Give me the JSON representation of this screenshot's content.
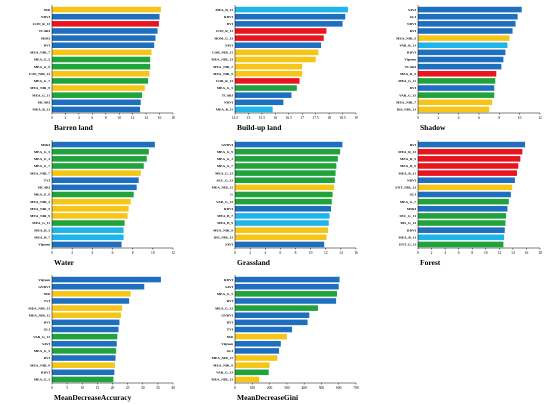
{
  "figure": {
    "colors": {
      "blue": "#1f6fbf",
      "red": "#e8141e",
      "green": "#1fa33a",
      "yellow": "#f5c518",
      "lightblue": "#1fb4ea"
    }
  },
  "chart_data": [
    {
      "type": "bar",
      "orientation": "horizontal",
      "title": "Barren land",
      "categories": [
        "NIR",
        "NDVI",
        "CON_R_13",
        "TCARI",
        "MSRI",
        "DVI",
        "MEA_NIR_7",
        "MEA_G_5",
        "MEA_G_9",
        "CON_NIR_13",
        "MEA_G_7",
        "MEA_NIR_9",
        "MEA_G_11",
        "MCARI",
        "MEA_B_13"
      ],
      "values": [
        16.2,
        16.0,
        15.9,
        15.7,
        15.4,
        15.2,
        14.8,
        14.6,
        14.6,
        14.5,
        14.3,
        13.8,
        13.4,
        13.2,
        13.1
      ],
      "bar_colors": [
        "yellow",
        "blue",
        "red",
        "blue",
        "blue",
        "blue",
        "yellow",
        "green",
        "green",
        "yellow",
        "green",
        "yellow",
        "green",
        "blue",
        "blue"
      ],
      "xlim": [
        0,
        18
      ],
      "xticks": [
        "0",
        "2",
        "4",
        "6",
        "8",
        "10",
        "12",
        "14",
        "16",
        "18"
      ]
    },
    {
      "type": "bar",
      "orientation": "horizontal",
      "title": "Build-up land",
      "categories": [
        "MEA_B_13",
        "RDVI",
        "DVI",
        "CON_R_13",
        "HOM_G_13",
        "SAVI",
        "COR_NIR_11",
        "MEA_NIR_13",
        "MEA_NIR_7",
        "MEA_NIR_9",
        "COR_R_13",
        "MEA_G_5",
        "TCARI",
        "NDVI",
        "MEA_B_11"
      ],
      "values": [
        18.7,
        18.6,
        18.5,
        17.9,
        17.8,
        17.7,
        17.6,
        17.5,
        17.0,
        17.0,
        16.9,
        16.8,
        16.6,
        16.3,
        15.9
      ],
      "bar_colors": [
        "lightblue",
        "blue",
        "blue",
        "red",
        "red",
        "blue",
        "yellow",
        "yellow",
        "yellow",
        "yellow",
        "red",
        "green",
        "blue",
        "blue",
        "lightblue"
      ],
      "xlim": [
        14.5,
        19
      ],
      "xticks": [
        "14.5",
        "15",
        "15.5",
        "16",
        "16.5",
        "17",
        "17.5",
        "18",
        "18.5",
        "19"
      ]
    },
    {
      "type": "bar",
      "orientation": "horizontal",
      "title": "Shadow",
      "categories": [
        "SAVI",
        "GLI",
        "NDVI",
        "RVI",
        "MEA_NIR_5",
        "VAR_R_13",
        "RDVI",
        "Vlgreen",
        "TCARI",
        "MEA_R_5",
        "MEA_G_11",
        "DVI",
        "VAR_G_13",
        "MEA_NIR_7",
        "DIS_NIR_13"
      ],
      "values": [
        10.2,
        9.8,
        9.6,
        9.3,
        9.0,
        8.8,
        8.6,
        8.4,
        8.2,
        7.7,
        7.6,
        7.5,
        7.5,
        7.3,
        7.0
      ],
      "bar_colors": [
        "blue",
        "blue",
        "blue",
        "blue",
        "yellow",
        "lightblue",
        "blue",
        "blue",
        "blue",
        "red",
        "green",
        "blue",
        "green",
        "yellow",
        "yellow"
      ],
      "xlim": [
        0,
        12
      ],
      "xticks": [
        "0",
        "2",
        "4",
        "6",
        "8",
        "10",
        "12"
      ]
    },
    {
      "type": "bar",
      "orientation": "horizontal",
      "title": "Water",
      "categories": [
        "MSRI",
        "MEA_G_5",
        "MEA_G_3",
        "MEA_G_7",
        "MEA_NIR_7",
        "TVI",
        "MCARI",
        "MEA_G_9",
        "MEA_NIR_3",
        "MEA_NIR_5",
        "MEA_NIR_9",
        "MEA_G_11",
        "MEA_B_3",
        "MEA_B_7",
        "Vlgreen"
      ],
      "values": [
        10.2,
        9.6,
        9.4,
        9.1,
        8.8,
        8.6,
        8.4,
        8.1,
        7.8,
        7.6,
        7.5,
        7.2,
        7.1,
        7.1,
        6.9
      ],
      "bar_colors": [
        "blue",
        "green",
        "green",
        "green",
        "yellow",
        "blue",
        "blue",
        "green",
        "yellow",
        "yellow",
        "yellow",
        "green",
        "lightblue",
        "lightblue",
        "blue"
      ],
      "xlim": [
        0,
        12
      ],
      "xticks": [
        "0",
        "2",
        "4",
        "6",
        "8",
        "10",
        "12"
      ]
    },
    {
      "type": "bar",
      "orientation": "horizontal",
      "title": "Grassland",
      "categories": [
        "GNDVI",
        "MEA_G_9",
        "MEA_G_3",
        "MEA_G_7",
        "MEA_G_13",
        "SEC_G_13",
        "MEA_NIR_11",
        "G",
        "VAR_G_13",
        "RDVI",
        "MEA_B_7",
        "MEA_B_9",
        "MEA_NIR_9",
        "DIS_NIR_13",
        "SAVI"
      ],
      "values": [
        14.2,
        13.9,
        13.6,
        13.4,
        13.3,
        13.2,
        13.1,
        12.9,
        12.8,
        12.7,
        12.5,
        12.4,
        12.3,
        12.1,
        11.8
      ],
      "bar_colors": [
        "blue",
        "green",
        "green",
        "green",
        "green",
        "green",
        "yellow",
        "green",
        "green",
        "blue",
        "lightblue",
        "lightblue",
        "yellow",
        "yellow",
        "blue"
      ],
      "xlim": [
        0,
        16
      ],
      "xticks": [
        "0",
        "2",
        "4",
        "6",
        "8",
        "10",
        "12",
        "14",
        "16"
      ]
    },
    {
      "type": "bar",
      "orientation": "horizontal",
      "title": "Forest",
      "categories": [
        "RVI",
        "MEA_R_13",
        "MEA_R_5",
        "MEA_R_9",
        "MEA_R_11",
        "NDVI",
        "ENT_NIR_13",
        "GLI",
        "MEA_G_7",
        "MSRI",
        "SEC_G_13",
        "DIS_G_13",
        "RDVI",
        "MEA_B_13",
        "ENT_G_13"
      ],
      "values": [
        15.8,
        15.4,
        15.1,
        14.8,
        14.6,
        14.3,
        13.9,
        13.7,
        13.4,
        13.2,
        13.0,
        12.9,
        12.8,
        12.7,
        12.6
      ],
      "bar_colors": [
        "blue",
        "red",
        "red",
        "red",
        "red",
        "blue",
        "yellow",
        "blue",
        "green",
        "blue",
        "green",
        "green",
        "blue",
        "lightblue",
        "green"
      ],
      "xlim": [
        0,
        18
      ],
      "xticks": [
        "0",
        "2",
        "4",
        "6",
        "8",
        "10",
        "12",
        "14",
        "16",
        "18"
      ]
    },
    {
      "type": "bar",
      "orientation": "horizontal",
      "title": "MeanDecreaseAccuracy",
      "categories": [
        "Vlgreen",
        "GNDVI",
        "NIR",
        "TVI",
        "MEA_NIR_13",
        "MEA_NIR_11",
        "DVI",
        "GLI",
        "VAR_G_13",
        "SAVI",
        "MEA_G_5",
        "RVI",
        "MEA_NIR_9",
        "RDVI",
        "MEA_G_3"
      ],
      "values": [
        36.0,
        30.5,
        26.0,
        25.5,
        23.2,
        22.8,
        22.3,
        22.0,
        21.6,
        21.4,
        21.2,
        21.0,
        20.8,
        20.6,
        20.3
      ],
      "bar_colors": [
        "blue",
        "blue",
        "yellow",
        "blue",
        "yellow",
        "yellow",
        "blue",
        "blue",
        "green",
        "blue",
        "green",
        "blue",
        "yellow",
        "blue",
        "green"
      ],
      "xlim": [
        0,
        40
      ],
      "xticks": [
        "0",
        "5",
        "10",
        "15",
        "20",
        "25",
        "30",
        "35",
        "40"
      ]
    },
    {
      "type": "bar",
      "orientation": "horizontal",
      "title": "MeanDecreaseGini",
      "categories": [
        "RDVI",
        "SAVI",
        "MEA_G_5",
        "RVI",
        "MEA_G_13",
        "GNDVI",
        "DVI",
        "TVI",
        "NIR",
        "Vlgreen",
        "GLI",
        "MEA_NIR_11",
        "MEA_NIR_9",
        "VAR_G_13",
        "MEA_NIR_13"
      ],
      "values": [
        605,
        600,
        590,
        585,
        480,
        430,
        420,
        330,
        300,
        265,
        255,
        245,
        200,
        195,
        140
      ],
      "bar_colors": [
        "blue",
        "blue",
        "green",
        "blue",
        "green",
        "blue",
        "blue",
        "blue",
        "yellow",
        "blue",
        "blue",
        "yellow",
        "yellow",
        "green",
        "yellow"
      ],
      "xlim": [
        0,
        700
      ],
      "xticks": [
        "0",
        "100",
        "200",
        "300",
        "400",
        "500",
        "600",
        "700"
      ]
    }
  ]
}
